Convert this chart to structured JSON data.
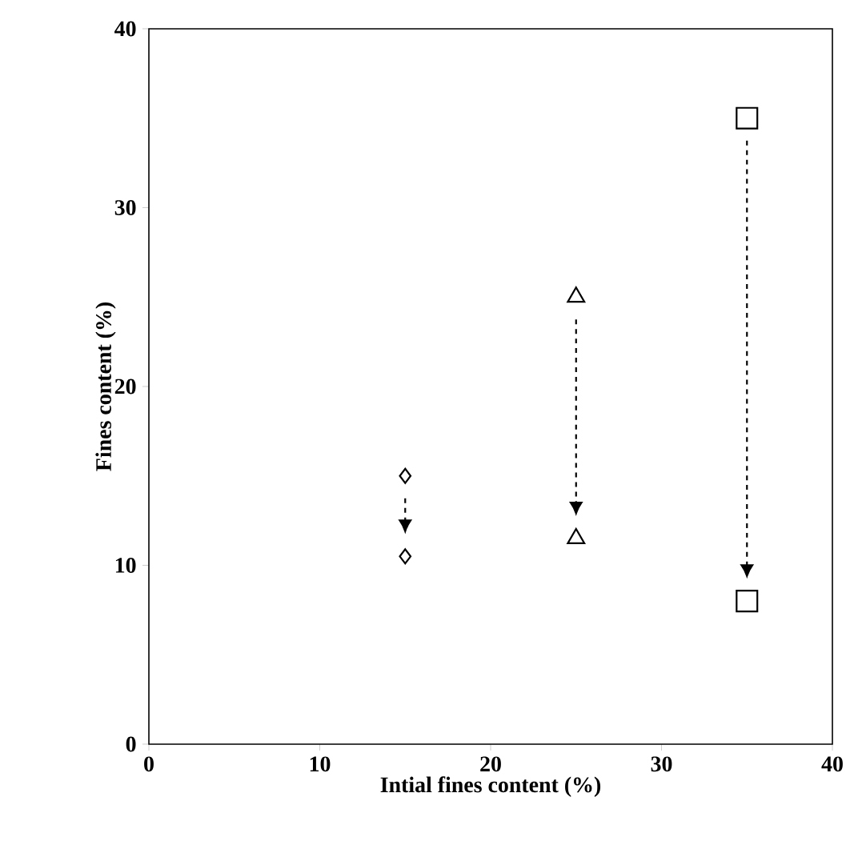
{
  "chart_data": {
    "type": "scatter",
    "xlabel": "Intial fines content (%)",
    "ylabel": "Fines content (%)",
    "xlim": [
      0,
      40
    ],
    "xticks": [
      0,
      10,
      20,
      30,
      40
    ],
    "ylim": [
      0,
      40
    ],
    "yticks": [
      0,
      10,
      20,
      30,
      40
    ],
    "series": [
      {
        "color": "#000000",
        "marker": "diamond",
        "x": [
          15,
          15
        ],
        "values": [
          15,
          10.5
        ]
      },
      {
        "color": "#000000",
        "marker": "triangle",
        "x": [
          25,
          25
        ],
        "values": [
          25,
          11.5
        ]
      },
      {
        "color": "#000000",
        "marker": "square",
        "x": [
          35,
          35
        ],
        "values": [
          35,
          8
        ]
      }
    ]
  }
}
